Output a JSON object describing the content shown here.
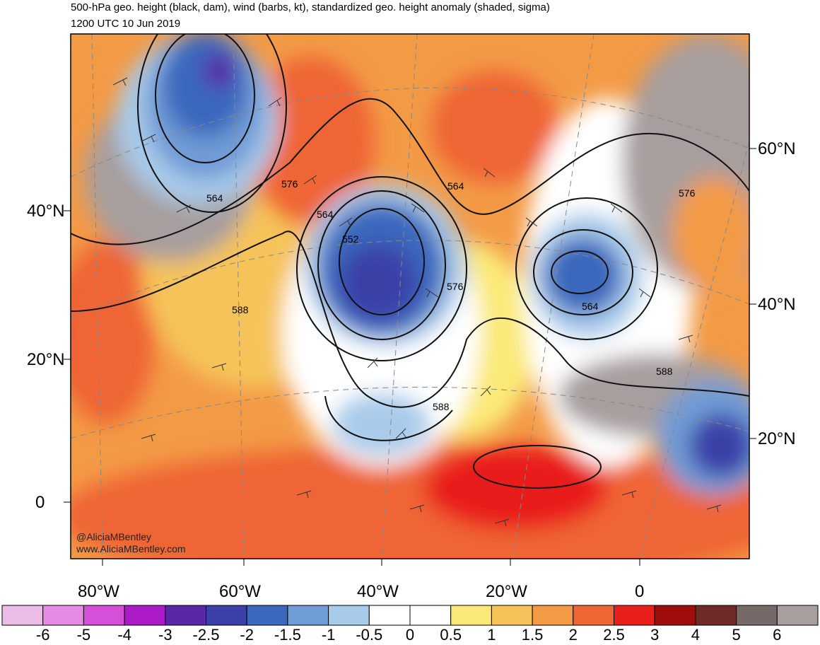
{
  "header": {
    "title": "500-hPa geo. height (black, dam), wind (barbs, kt), standardized geo. height anomaly (shaded, sigma)",
    "valid_time": "1200 UTC 10 Jun 2019"
  },
  "credits": {
    "handle": "@AliciaMBentley",
    "website": "www.AliciaMBentley.com"
  },
  "axes": {
    "lat_left": [
      "40°N",
      "20°N",
      "0"
    ],
    "lat_right": [
      "60°N",
      "40°N",
      "20°N"
    ],
    "lon_bottom": [
      "80°W",
      "60°W",
      "40°W",
      "20°W",
      "0"
    ]
  },
  "contour_labels": [
    "564",
    "576",
    "564",
    "552",
    "564",
    "576",
    "588",
    "564",
    "576",
    "588",
    "588"
  ],
  "colorbar": {
    "labels": [
      "-6",
      "-5",
      "-4",
      "-3",
      "-2.5",
      "-2",
      "-1.5",
      "-1",
      "-0.5",
      "0",
      "0.5",
      "1",
      "1.5",
      "2",
      "2.5",
      "3",
      "4",
      "5",
      "6"
    ],
    "colors": [
      "#ebbde6",
      "#e58be3",
      "#d64fd9",
      "#ad1bc6",
      "#5a27a6",
      "#3b3fa7",
      "#3a68bd",
      "#6f9bd6",
      "#a9cbea",
      "#ffffff",
      "#ffffff",
      "#fbe977",
      "#f6c35a",
      "#f39a45",
      "#ef6534",
      "#e91f1c",
      "#a00c0c",
      "#6f2b28",
      "#766967",
      "#a79e9d"
    ]
  },
  "chart_data": {
    "type": "heatmap",
    "variable": "standardized geo. height anomaly (shaded, sigma)",
    "valid_time": "1200 UTC 10 Jun 2019",
    "levels": [
      -6,
      -5,
      -4,
      -3,
      -2.5,
      -2,
      -1.5,
      -1,
      -0.5,
      0,
      0.5,
      1,
      1.5,
      2,
      2.5,
      3,
      4,
      5,
      6
    ],
    "height_contours_dam": [
      552,
      564,
      576,
      588
    ],
    "features": [
      {
        "lat": 61,
        "lon": -65,
        "anomaly": -2.5
      },
      {
        "lat": 39,
        "lon": -38,
        "anomaly": -2.5
      },
      {
        "lat": 38,
        "lon": -10,
        "anomaly": -1.5
      },
      {
        "lat": 20,
        "lon": 12,
        "anomaly": -2.5
      },
      {
        "lat": 20,
        "lon": -38,
        "anomaly": -1
      },
      {
        "lat": 57,
        "lon": -48,
        "anomaly": 2.5
      },
      {
        "lat": 63,
        "lon": -22,
        "anomaly": 2.5
      },
      {
        "lat": 5,
        "lon": -20,
        "anomaly": 3
      },
      {
        "lat": 25,
        "lon": -80,
        "anomaly": 3
      }
    ]
  }
}
